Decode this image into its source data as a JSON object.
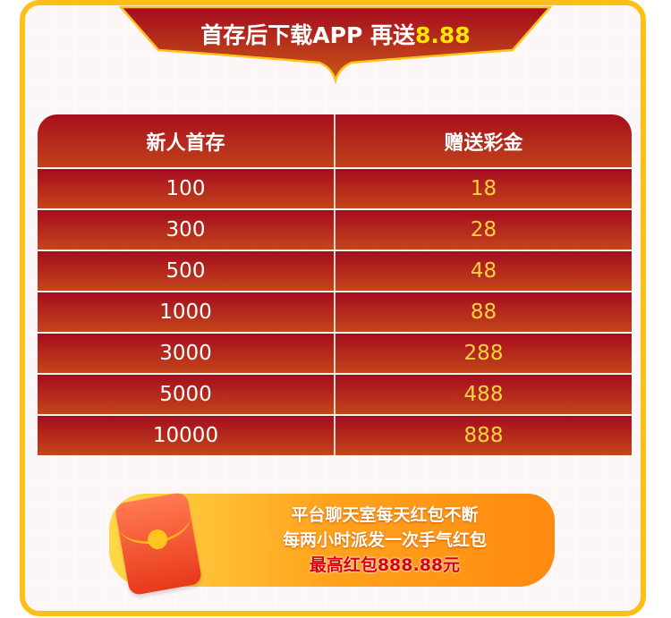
{
  "banner": {
    "title": "首存后下载APP 再送",
    "highlight": "8.88"
  },
  "table": {
    "headers": [
      "新人首存",
      "赠送彩金"
    ],
    "rows": [
      [
        "100",
        "18"
      ],
      [
        "300",
        "28"
      ],
      [
        "500",
        "48"
      ],
      [
        "1000",
        "88"
      ],
      [
        "3000",
        "288"
      ],
      [
        "5000",
        "488"
      ],
      [
        "10000",
        "888"
      ]
    ]
  },
  "promo": {
    "line1": "平台聊天室每天红包不断",
    "line2": "每两小时派发一次手气红包",
    "line3": "最高红包888.88元"
  },
  "colors": {
    "frame": "#ffbf17",
    "header_red": "#a60f1d",
    "value_yellow": "#ffd23f"
  }
}
